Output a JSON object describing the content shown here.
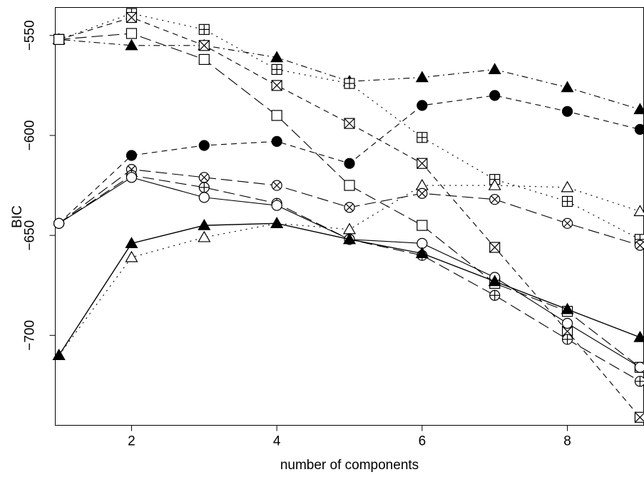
{
  "chart_data": {
    "type": "line",
    "title": "",
    "xlabel": "number of components",
    "ylabel": "BIC",
    "xlim": [
      0.95,
      9.05
    ],
    "ylim": [
      -745,
      -536
    ],
    "x_ticks": [
      2,
      4,
      6,
      8
    ],
    "y_ticks": [
      -550,
      -600,
      -650,
      -700
    ],
    "x": [
      1,
      2,
      3,
      4,
      5,
      6,
      7,
      8,
      9
    ],
    "grid": false,
    "legend": "none",
    "series": [
      {
        "marker": "filled-triangle",
        "linestyle": "dashdot",
        "values": [
          -552,
          -555,
          -555,
          -561,
          -573,
          -571,
          -567,
          -576,
          -587
        ]
      },
      {
        "marker": "filled-circle",
        "linestyle": "dashed",
        "values": [
          -644,
          -610,
          -605,
          -603,
          -614,
          -585,
          -580,
          -588,
          -597
        ]
      },
      {
        "marker": "boxed-plus",
        "linestyle": "dotted",
        "values": [
          -552,
          -539,
          -547,
          -567,
          -574,
          -601,
          -622,
          -633,
          -652
        ]
      },
      {
        "marker": "boxed-x",
        "linestyle": "dashed",
        "values": [
          -552,
          -541,
          -555,
          -575,
          -594,
          -614,
          -656,
          -698,
          -741
        ]
      },
      {
        "marker": "open-square",
        "linestyle": "longdash",
        "values": [
          -552,
          -549,
          -562,
          -590,
          -625,
          -645,
          -674,
          -688,
          -716
        ]
      },
      {
        "marker": "open-triangle",
        "linestyle": "dotted",
        "values": [
          -710,
          -661,
          -651,
          -644,
          -647,
          -625,
          -625,
          -626,
          -638
        ]
      },
      {
        "marker": "circle-x",
        "linestyle": "longdash",
        "values": [
          -644,
          -617,
          -621,
          -625,
          -636,
          -629,
          -632,
          -644,
          -655
        ]
      },
      {
        "marker": "circle-plus",
        "linestyle": "longdash",
        "values": [
          -644,
          -620,
          -626,
          -634,
          -652,
          -660,
          -680,
          -702,
          -723
        ]
      },
      {
        "marker": "open-circle",
        "linestyle": "solid-thin",
        "values": [
          -644,
          -621,
          -631,
          -635,
          -652,
          -654,
          -671,
          -694,
          -716
        ]
      },
      {
        "marker": "filled-triangle",
        "linestyle": "solid",
        "values": [
          -710,
          -654,
          -645,
          -644,
          -652,
          -659,
          -673,
          -687,
          -701
        ]
      }
    ]
  }
}
